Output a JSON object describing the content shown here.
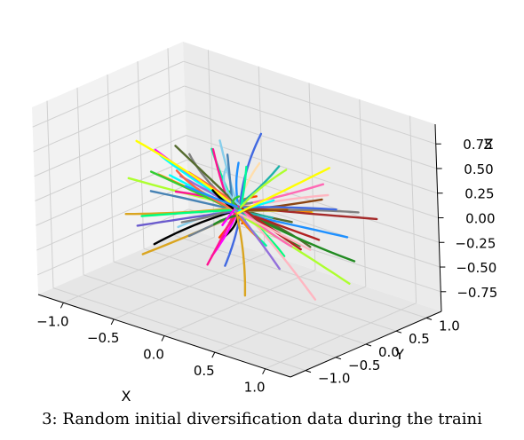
{
  "chart_data": {
    "type": "3d-line",
    "title": "",
    "xlabel": "X",
    "ylabel": "Y",
    "zlabel": "Z",
    "xlim": [
      -1.25,
      1.25
    ],
    "ylim": [
      -1.25,
      1.25
    ],
    "zlim": [
      -0.95,
      0.95
    ],
    "x_ticks": [
      "−1.0",
      "−0.5",
      "0.0",
      "0.5",
      "1.0"
    ],
    "y_ticks": [
      "−1.0",
      "−0.5",
      "0.0",
      "0.5",
      "1.0"
    ],
    "z_ticks": [
      "−0.75",
      "−0.50",
      "−0.25",
      "0.00",
      "0.25",
      "0.50",
      "0.75"
    ],
    "x_tick_values": [
      -1.0,
      -0.5,
      0.0,
      0.5,
      1.0
    ],
    "y_tick_values": [
      -1.0,
      -0.5,
      0.0,
      0.5,
      1.0
    ],
    "z_tick_values": [
      -0.75,
      -0.5,
      -0.25,
      0.0,
      0.25,
      0.5,
      0.75
    ],
    "grid": true,
    "series_count": 80,
    "series_palette": [
      "#000000",
      "#556b2f",
      "#87ceeb",
      "#808080",
      "#ff8c00",
      "#00fa9a",
      "#4169e1",
      "#8b4513",
      "#ff1493",
      "#228b22",
      "#ff00ff",
      "#00ffff",
      "#b22222",
      "#daa520",
      "#9370db",
      "#ffb6c1",
      "#32cd32",
      "#1e90ff",
      "#adff2f",
      "#ffff00",
      "#ff4500",
      "#6a5acd",
      "#20b2aa",
      "#a52a2a",
      "#ff69b4",
      "#00ff7f",
      "#ffdead",
      "#708090",
      "#4682b4",
      "#ff6347"
    ]
  },
  "caption": "3: Random initial diversification data during the traini"
}
